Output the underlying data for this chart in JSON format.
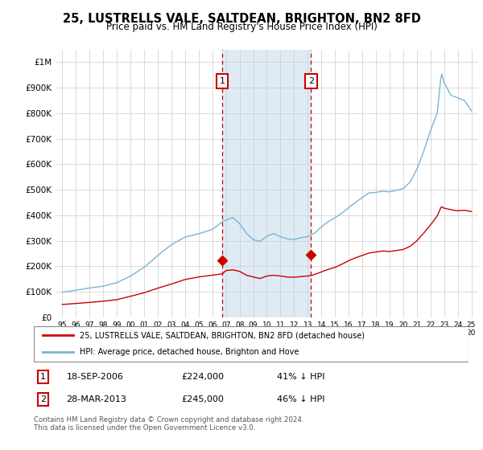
{
  "title": "25, LUSTRELLS VALE, SALTDEAN, BRIGHTON, BN2 8FD",
  "subtitle": "Price paid vs. HM Land Registry's House Price Index (HPI)",
  "legend_line1": "25, LUSTRELLS VALE, SALTDEAN, BRIGHTON, BN2 8FD (detached house)",
  "legend_line2": "HPI: Average price, detached house, Brighton and Hove",
  "annotation1_date": "18-SEP-2006",
  "annotation1_price": "£224,000",
  "annotation1_hpi": "41% ↓ HPI",
  "annotation1_year": 2006.72,
  "annotation1_value": 224000,
  "annotation2_date": "28-MAR-2013",
  "annotation2_price": "£245,000",
  "annotation2_hpi": "46% ↓ HPI",
  "annotation2_year": 2013.24,
  "annotation2_value": 245000,
  "footer": "Contains HM Land Registry data © Crown copyright and database right 2024.\nThis data is licensed under the Open Government Licence v3.0.",
  "hpi_color": "#7ab3d4",
  "price_color": "#cc0000",
  "vline_color": "#cc0000",
  "shade_color": "#deeaf4",
  "ylim_max": 1050000,
  "yticks": [
    0,
    100000,
    200000,
    300000,
    400000,
    500000,
    600000,
    700000,
    800000,
    900000,
    1000000
  ],
  "ytick_labels": [
    "£0",
    "£100K",
    "£200K",
    "£300K",
    "£400K",
    "£500K",
    "£600K",
    "£700K",
    "£800K",
    "£900K",
    "£1M"
  ],
  "xstart": 1995,
  "xend": 2025
}
